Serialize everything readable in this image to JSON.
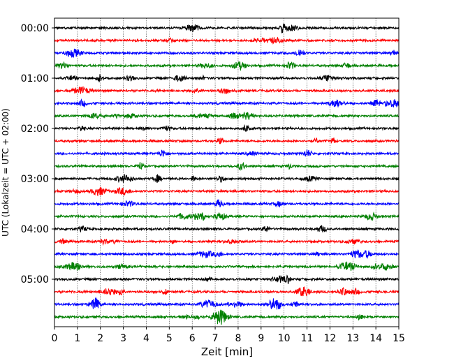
{
  "chart_data": {
    "type": "line",
    "subtype": "helicorder",
    "xlabel": "Zeit  [min]",
    "ylabel": "UTC (Lokalzeit = UTC + 02:00)",
    "xlim": [
      0,
      15
    ],
    "x_ticks": [
      "0",
      "1",
      "2",
      "3",
      "4",
      "5",
      "6",
      "7",
      "8",
      "9",
      "10",
      "11",
      "12",
      "13",
      "14",
      "15"
    ],
    "y_tick_labels": [
      "00:00",
      "01:00",
      "02:00",
      "03:00",
      "04:00",
      "05:00"
    ],
    "trace_interval_minutes": 15,
    "trace_count": 24,
    "trace_colors": [
      "#000000",
      "#ff0000",
      "#0000ff",
      "#008000"
    ],
    "grid": "vertical dotted lines at each minute",
    "legend": "none"
  }
}
